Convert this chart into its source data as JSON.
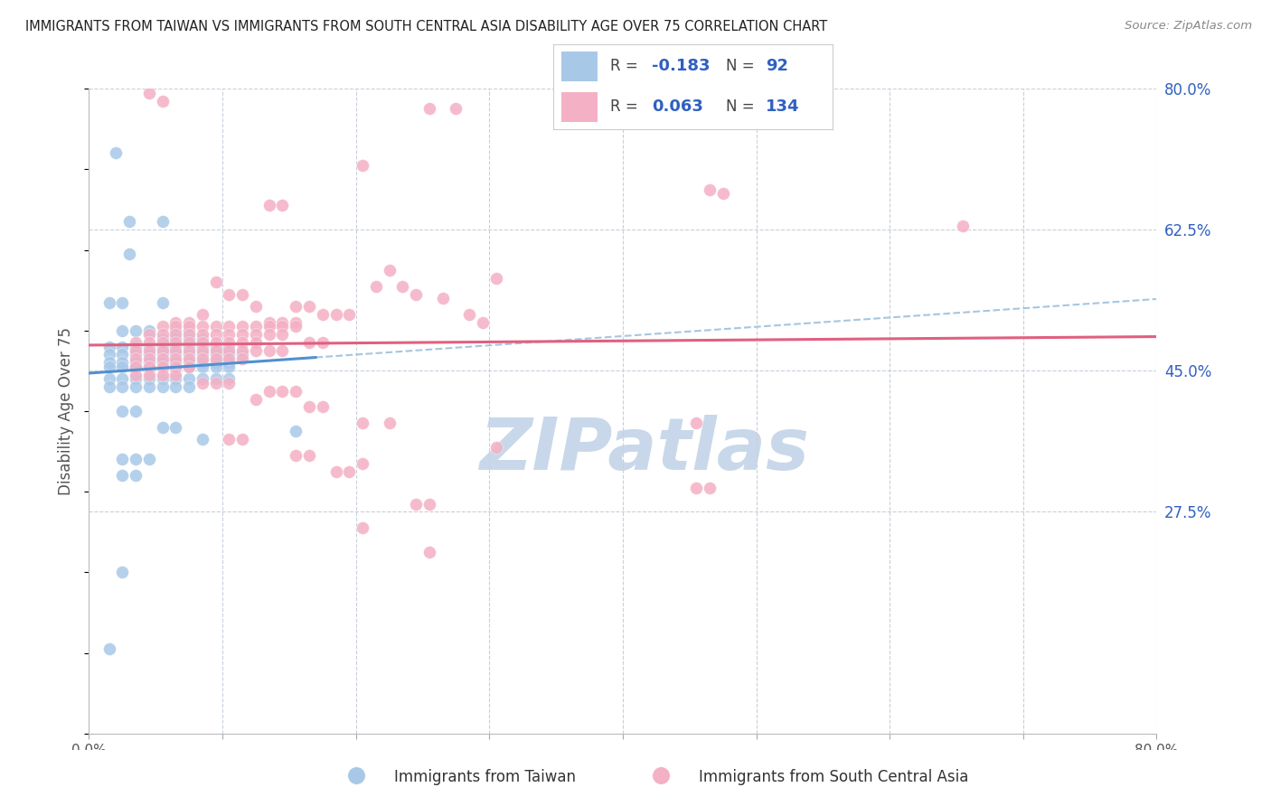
{
  "title": "IMMIGRANTS FROM TAIWAN VS IMMIGRANTS FROM SOUTH CENTRAL ASIA DISABILITY AGE OVER 75 CORRELATION CHART",
  "source": "Source: ZipAtlas.com",
  "ylabel": "Disability Age Over 75",
  "xlim": [
    0.0,
    0.8
  ],
  "ylim": [
    0.0,
    0.8
  ],
  "yticks": [
    0.275,
    0.45,
    0.625,
    0.8
  ],
  "ytick_labels": [
    "27.5%",
    "45.0%",
    "62.5%",
    "80.0%"
  ],
  "xticks": [
    0.0,
    0.1,
    0.2,
    0.3,
    0.4,
    0.5,
    0.6,
    0.7,
    0.8
  ],
  "taiwan_R": -0.183,
  "taiwan_N": 92,
  "sca_R": 0.063,
  "sca_N": 134,
  "taiwan_color": "#a8c8e8",
  "sca_color": "#f4b0c4",
  "taiwan_line_color": "#5090d0",
  "sca_line_color": "#e06080",
  "taiwan_dash_color": "#90b8d8",
  "watermark": "ZIPatlas",
  "watermark_color": "#c8d8ea",
  "background_color": "#ffffff",
  "grid_color": "#c8d0dc",
  "tick_label_color": "#3060c0",
  "axis_label_color": "#555555",
  "taiwan_scatter": [
    [
      0.02,
      0.72
    ],
    [
      0.03,
      0.635
    ],
    [
      0.055,
      0.635
    ],
    [
      0.03,
      0.595
    ],
    [
      0.015,
      0.535
    ],
    [
      0.025,
      0.535
    ],
    [
      0.055,
      0.535
    ],
    [
      0.065,
      0.5
    ],
    [
      0.075,
      0.5
    ],
    [
      0.025,
      0.5
    ],
    [
      0.035,
      0.5
    ],
    [
      0.045,
      0.5
    ],
    [
      0.055,
      0.49
    ],
    [
      0.065,
      0.49
    ],
    [
      0.075,
      0.49
    ],
    [
      0.085,
      0.49
    ],
    [
      0.015,
      0.48
    ],
    [
      0.025,
      0.48
    ],
    [
      0.035,
      0.48
    ],
    [
      0.045,
      0.48
    ],
    [
      0.055,
      0.48
    ],
    [
      0.065,
      0.48
    ],
    [
      0.075,
      0.48
    ],
    [
      0.085,
      0.48
    ],
    [
      0.095,
      0.48
    ],
    [
      0.105,
      0.48
    ],
    [
      0.015,
      0.47
    ],
    [
      0.025,
      0.47
    ],
    [
      0.035,
      0.47
    ],
    [
      0.045,
      0.47
    ],
    [
      0.055,
      0.47
    ],
    [
      0.065,
      0.47
    ],
    [
      0.075,
      0.47
    ],
    [
      0.085,
      0.47
    ],
    [
      0.095,
      0.47
    ],
    [
      0.105,
      0.47
    ],
    [
      0.115,
      0.47
    ],
    [
      0.015,
      0.46
    ],
    [
      0.025,
      0.46
    ],
    [
      0.035,
      0.46
    ],
    [
      0.045,
      0.46
    ],
    [
      0.055,
      0.46
    ],
    [
      0.065,
      0.46
    ],
    [
      0.075,
      0.46
    ],
    [
      0.085,
      0.46
    ],
    [
      0.095,
      0.46
    ],
    [
      0.105,
      0.46
    ],
    [
      0.015,
      0.455
    ],
    [
      0.025,
      0.455
    ],
    [
      0.035,
      0.455
    ],
    [
      0.045,
      0.455
    ],
    [
      0.055,
      0.455
    ],
    [
      0.065,
      0.455
    ],
    [
      0.075,
      0.455
    ],
    [
      0.085,
      0.455
    ],
    [
      0.095,
      0.455
    ],
    [
      0.105,
      0.455
    ],
    [
      0.015,
      0.44
    ],
    [
      0.025,
      0.44
    ],
    [
      0.035,
      0.44
    ],
    [
      0.045,
      0.44
    ],
    [
      0.055,
      0.44
    ],
    [
      0.065,
      0.44
    ],
    [
      0.075,
      0.44
    ],
    [
      0.085,
      0.44
    ],
    [
      0.095,
      0.44
    ],
    [
      0.105,
      0.44
    ],
    [
      0.015,
      0.43
    ],
    [
      0.025,
      0.43
    ],
    [
      0.035,
      0.43
    ],
    [
      0.045,
      0.43
    ],
    [
      0.055,
      0.43
    ],
    [
      0.065,
      0.43
    ],
    [
      0.075,
      0.43
    ],
    [
      0.025,
      0.4
    ],
    [
      0.035,
      0.4
    ],
    [
      0.055,
      0.38
    ],
    [
      0.065,
      0.38
    ],
    [
      0.085,
      0.365
    ],
    [
      0.025,
      0.34
    ],
    [
      0.035,
      0.34
    ],
    [
      0.045,
      0.34
    ],
    [
      0.025,
      0.32
    ],
    [
      0.035,
      0.32
    ],
    [
      0.155,
      0.375
    ],
    [
      0.025,
      0.2
    ],
    [
      0.015,
      0.105
    ]
  ],
  "sca_scatter": [
    [
      0.045,
      0.795
    ],
    [
      0.055,
      0.785
    ],
    [
      0.255,
      0.775
    ],
    [
      0.275,
      0.775
    ],
    [
      0.205,
      0.705
    ],
    [
      0.465,
      0.675
    ],
    [
      0.475,
      0.67
    ],
    [
      0.135,
      0.655
    ],
    [
      0.145,
      0.655
    ],
    [
      0.655,
      0.63
    ],
    [
      0.225,
      0.575
    ],
    [
      0.305,
      0.565
    ],
    [
      0.095,
      0.56
    ],
    [
      0.215,
      0.555
    ],
    [
      0.235,
      0.555
    ],
    [
      0.245,
      0.545
    ],
    [
      0.105,
      0.545
    ],
    [
      0.115,
      0.545
    ],
    [
      0.265,
      0.54
    ],
    [
      0.125,
      0.53
    ],
    [
      0.155,
      0.53
    ],
    [
      0.165,
      0.53
    ],
    [
      0.085,
      0.52
    ],
    [
      0.175,
      0.52
    ],
    [
      0.185,
      0.52
    ],
    [
      0.195,
      0.52
    ],
    [
      0.285,
      0.52
    ],
    [
      0.065,
      0.51
    ],
    [
      0.075,
      0.51
    ],
    [
      0.135,
      0.51
    ],
    [
      0.145,
      0.51
    ],
    [
      0.155,
      0.51
    ],
    [
      0.295,
      0.51
    ],
    [
      0.055,
      0.505
    ],
    [
      0.065,
      0.505
    ],
    [
      0.075,
      0.505
    ],
    [
      0.085,
      0.505
    ],
    [
      0.095,
      0.505
    ],
    [
      0.105,
      0.505
    ],
    [
      0.115,
      0.505
    ],
    [
      0.125,
      0.505
    ],
    [
      0.135,
      0.505
    ],
    [
      0.145,
      0.505
    ],
    [
      0.155,
      0.505
    ],
    [
      0.045,
      0.495
    ],
    [
      0.055,
      0.495
    ],
    [
      0.065,
      0.495
    ],
    [
      0.075,
      0.495
    ],
    [
      0.085,
      0.495
    ],
    [
      0.095,
      0.495
    ],
    [
      0.105,
      0.495
    ],
    [
      0.115,
      0.495
    ],
    [
      0.125,
      0.495
    ],
    [
      0.135,
      0.495
    ],
    [
      0.145,
      0.495
    ],
    [
      0.035,
      0.485
    ],
    [
      0.045,
      0.485
    ],
    [
      0.055,
      0.485
    ],
    [
      0.065,
      0.485
    ],
    [
      0.075,
      0.485
    ],
    [
      0.085,
      0.485
    ],
    [
      0.095,
      0.485
    ],
    [
      0.105,
      0.485
    ],
    [
      0.115,
      0.485
    ],
    [
      0.125,
      0.485
    ],
    [
      0.165,
      0.485
    ],
    [
      0.175,
      0.485
    ],
    [
      0.035,
      0.475
    ],
    [
      0.045,
      0.475
    ],
    [
      0.055,
      0.475
    ],
    [
      0.065,
      0.475
    ],
    [
      0.075,
      0.475
    ],
    [
      0.085,
      0.475
    ],
    [
      0.095,
      0.475
    ],
    [
      0.105,
      0.475
    ],
    [
      0.115,
      0.475
    ],
    [
      0.125,
      0.475
    ],
    [
      0.135,
      0.475
    ],
    [
      0.145,
      0.475
    ],
    [
      0.035,
      0.465
    ],
    [
      0.045,
      0.465
    ],
    [
      0.055,
      0.465
    ],
    [
      0.065,
      0.465
    ],
    [
      0.075,
      0.465
    ],
    [
      0.085,
      0.465
    ],
    [
      0.095,
      0.465
    ],
    [
      0.105,
      0.465
    ],
    [
      0.115,
      0.465
    ],
    [
      0.035,
      0.455
    ],
    [
      0.045,
      0.455
    ],
    [
      0.055,
      0.455
    ],
    [
      0.065,
      0.455
    ],
    [
      0.075,
      0.455
    ],
    [
      0.035,
      0.445
    ],
    [
      0.045,
      0.445
    ],
    [
      0.055,
      0.445
    ],
    [
      0.065,
      0.445
    ],
    [
      0.085,
      0.435
    ],
    [
      0.095,
      0.435
    ],
    [
      0.105,
      0.435
    ],
    [
      0.135,
      0.425
    ],
    [
      0.145,
      0.425
    ],
    [
      0.155,
      0.425
    ],
    [
      0.125,
      0.415
    ],
    [
      0.165,
      0.405
    ],
    [
      0.175,
      0.405
    ],
    [
      0.205,
      0.385
    ],
    [
      0.225,
      0.385
    ],
    [
      0.455,
      0.385
    ],
    [
      0.105,
      0.365
    ],
    [
      0.115,
      0.365
    ],
    [
      0.305,
      0.355
    ],
    [
      0.155,
      0.345
    ],
    [
      0.165,
      0.345
    ],
    [
      0.205,
      0.335
    ],
    [
      0.185,
      0.325
    ],
    [
      0.195,
      0.325
    ],
    [
      0.455,
      0.305
    ],
    [
      0.465,
      0.305
    ],
    [
      0.245,
      0.285
    ],
    [
      0.255,
      0.285
    ],
    [
      0.205,
      0.255
    ],
    [
      0.255,
      0.225
    ]
  ]
}
